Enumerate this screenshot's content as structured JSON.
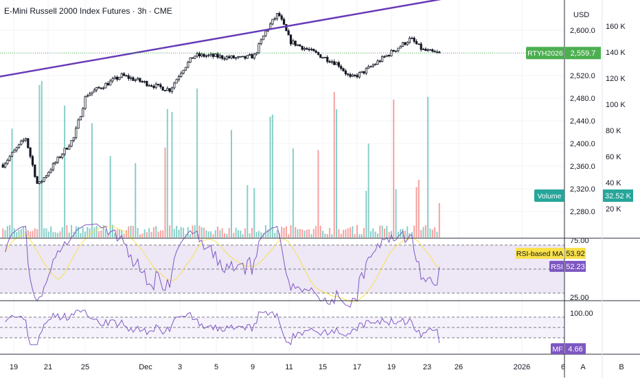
{
  "header": {
    "title": "E-Mini Russell 2000 Index Futures · 3h · CME"
  },
  "price_axis": {
    "currency": "USD",
    "ticks": [
      "2,600.0",
      "2,560.0",
      "2,520.0",
      "2,480.0",
      "2,440.0",
      "2,400.0",
      "2,360.0",
      "2,320.0",
      "2,280.0"
    ],
    "last_label": "2,559.7",
    "symbol_tag": "RTYH2026"
  },
  "volume_axis": {
    "ticks": [
      "160 K",
      "140 K",
      "120 K",
      "100 K",
      "80 K",
      "60 K",
      "40 K",
      "20 K"
    ],
    "label": "Volume",
    "last_value": "32.52 K"
  },
  "rsi_panel": {
    "ticks": [
      "75.00",
      "25.00"
    ],
    "ma_label": "RSI-based MA",
    "ma_value": "53.92",
    "rsi_label": "RSI",
    "rsi_value": "52.23"
  },
  "mf_panel": {
    "tick": "100.00",
    "label": "MF",
    "value": "4.66"
  },
  "time_axis": {
    "ticks": [
      "19",
      "21",
      "25",
      "Dec",
      "3",
      "5",
      "9",
      "11",
      "15",
      "17",
      "19",
      "23",
      "26",
      "2026",
      "6"
    ]
  },
  "footer": {
    "scale_a": "A",
    "scale_b": "B"
  },
  "colors": {
    "up": "#26a69a",
    "down": "#ef5350",
    "trendline": "#673ab7",
    "rsi": "#7e57c2",
    "rsi_ma": "#f9e14b",
    "price_tag": "#4caf50",
    "volume_tag": "#26a69a",
    "band_fill": "#ede7f6"
  },
  "chart_data": {
    "type": "candlestick",
    "symbol": "RTYH2026",
    "interval": "3h",
    "price_range": [
      2270,
      2650
    ],
    "last_price": 2559.7,
    "price_path_approx": [
      {
        "date": "Nov 18",
        "price": 2360
      },
      {
        "date": "Nov 20",
        "price": 2410
      },
      {
        "date": "Nov 21",
        "price": 2325
      },
      {
        "date": "Nov 24",
        "price": 2410
      },
      {
        "date": "Nov 25",
        "price": 2485
      },
      {
        "date": "Nov 28",
        "price": 2520
      },
      {
        "date": "Dec 1",
        "price": 2500
      },
      {
        "date": "Dec 2",
        "price": 2495
      },
      {
        "date": "Dec 3",
        "price": 2530
      },
      {
        "date": "Dec 4",
        "price": 2555
      },
      {
        "date": "Dec 5",
        "price": 2555
      },
      {
        "date": "Dec 8",
        "price": 2550
      },
      {
        "date": "Dec 9",
        "price": 2555
      },
      {
        "date": "Dec 10",
        "price": 2600
      },
      {
        "date": "Dec 11",
        "price": 2630
      },
      {
        "date": "Dec 12",
        "price": 2580
      },
      {
        "date": "Dec 15",
        "price": 2550
      },
      {
        "date": "Dec 16",
        "price": 2540
      },
      {
        "date": "Dec 17",
        "price": 2515
      },
      {
        "date": "Dec 18",
        "price": 2525
      },
      {
        "date": "Dec 19",
        "price": 2540
      },
      {
        "date": "Dec 22",
        "price": 2585
      },
      {
        "date": "Dec 23",
        "price": 2565
      },
      {
        "date": "Dec 24",
        "price": 2559.7
      }
    ],
    "trendline": {
      "from": {
        "date": "Nov 17",
        "price": 2515
      },
      "to": {
        "date": "Dec 27",
        "price": 2658
      }
    },
    "volume_range": [
      0,
      175000
    ],
    "volume_last": 32520,
    "rsi": {
      "value": 52.23,
      "ma": 53.92,
      "levels": [
        75,
        50,
        25
      ]
    },
    "mf": {
      "value": 4.66,
      "levels": [
        100,
        80,
        50,
        20
      ]
    }
  }
}
